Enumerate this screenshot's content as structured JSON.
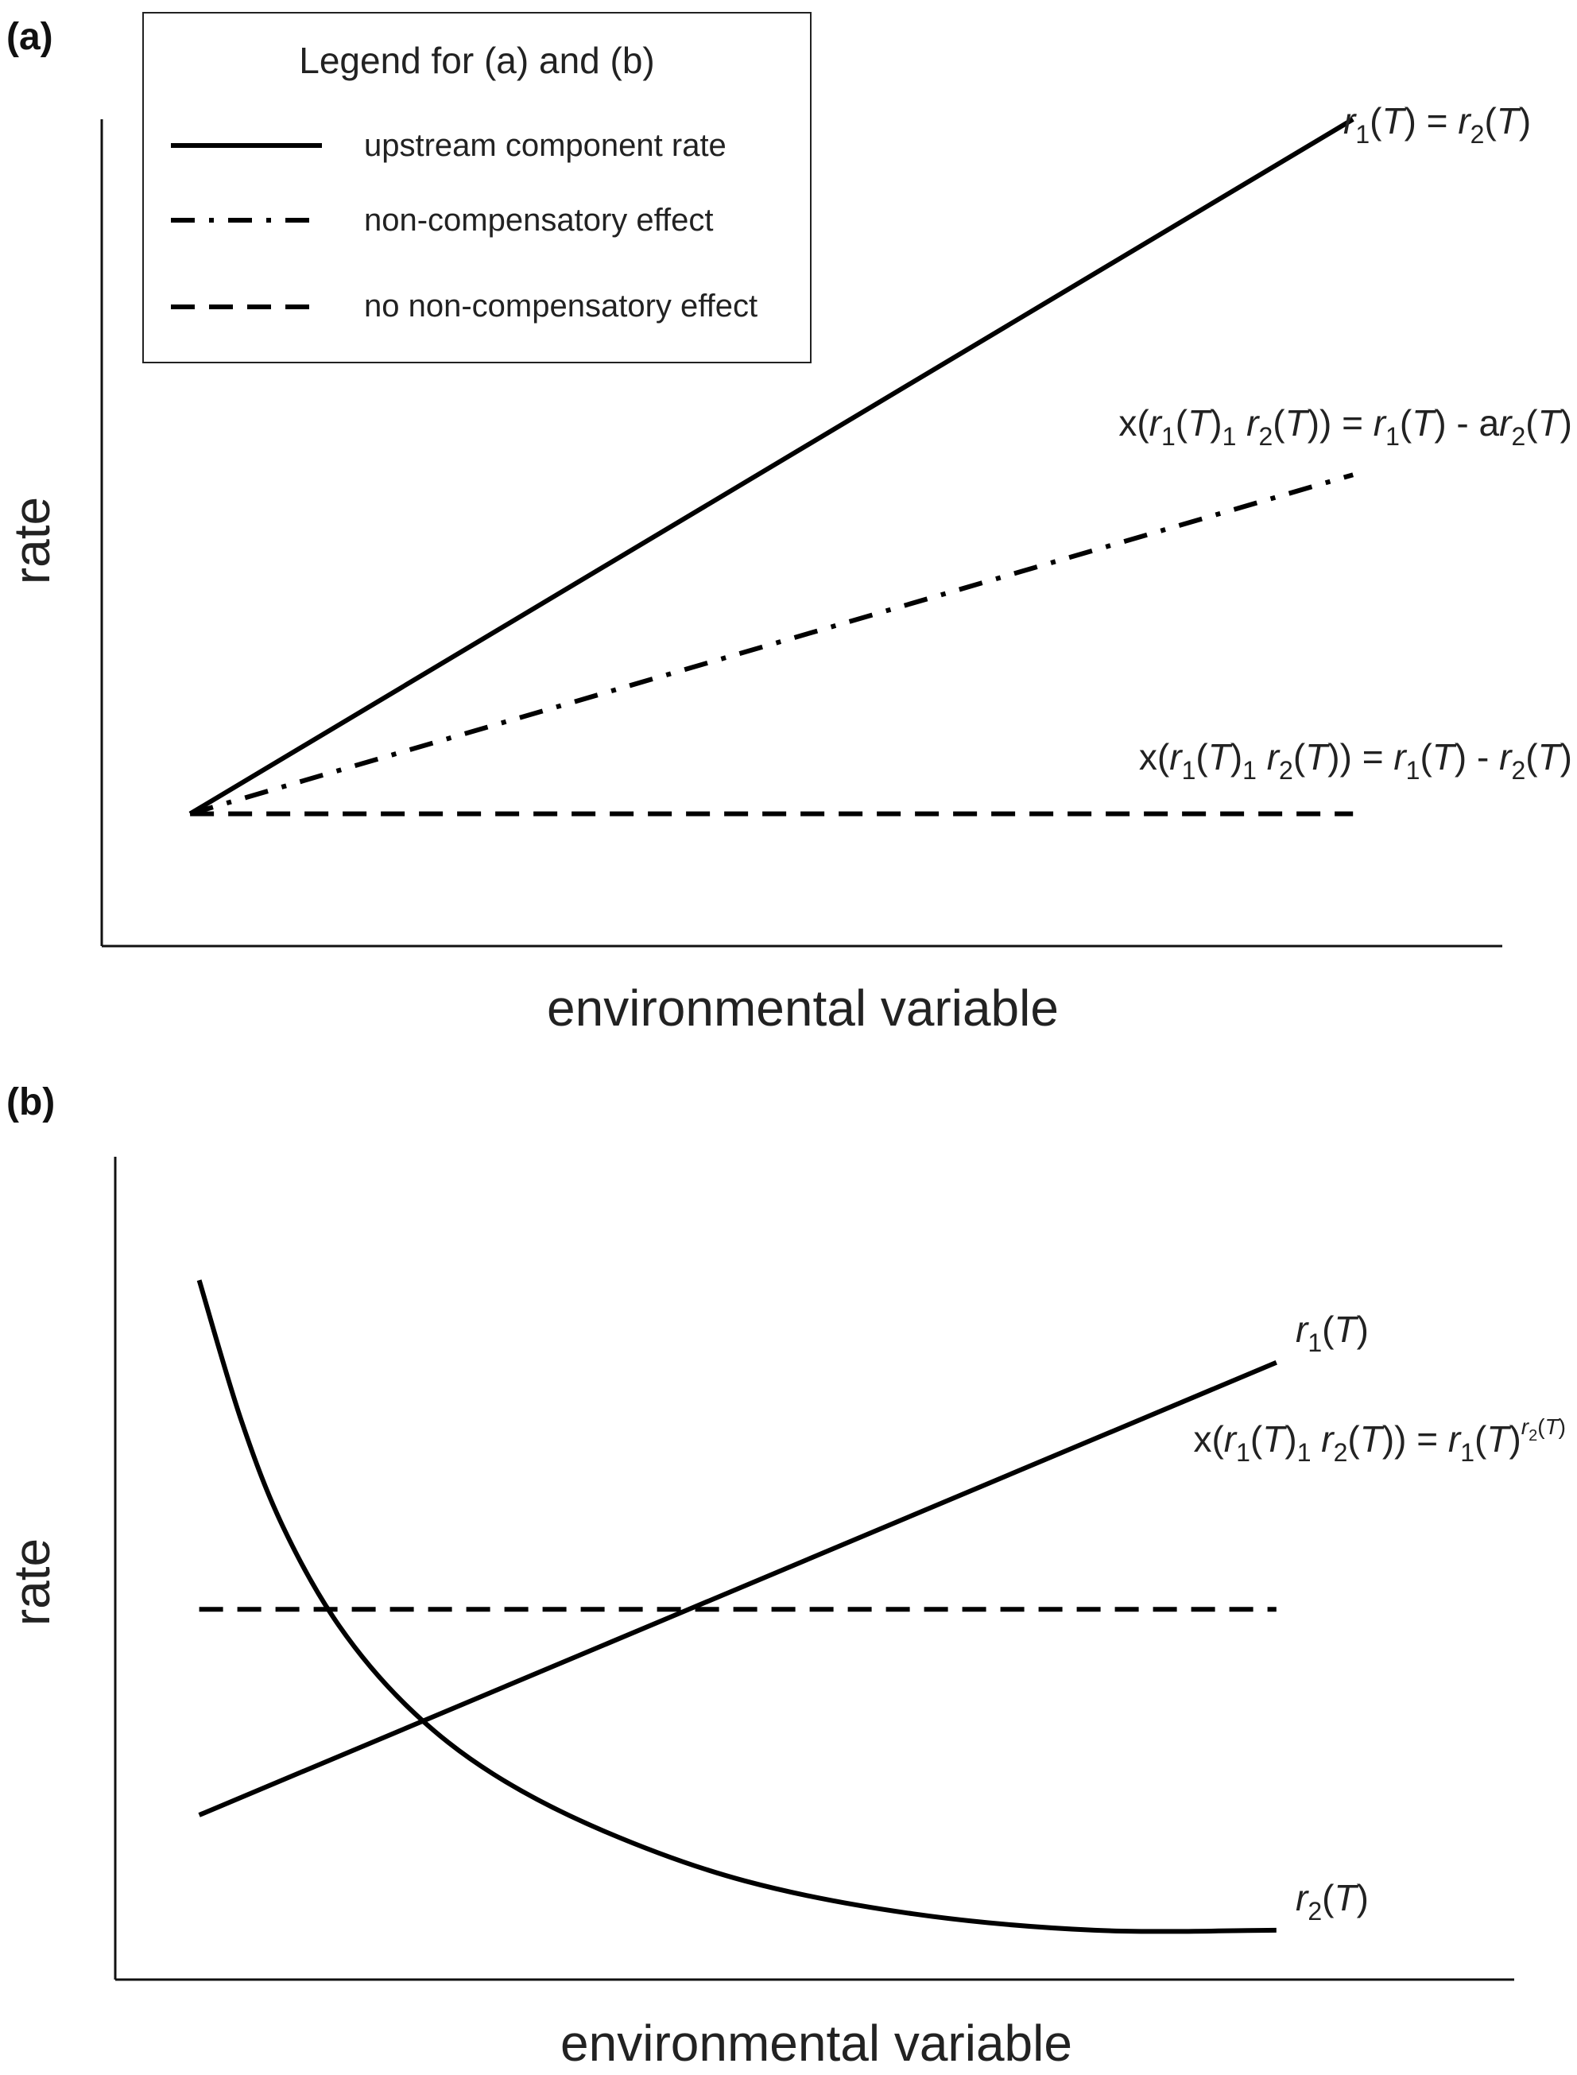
{
  "chart_data": [
    {
      "type": "line",
      "panel_label": "(a)",
      "xlabel": "environmental variable",
      "ylabel": "rate",
      "xlim": [
        0,
        1
      ],
      "ylim": [
        0,
        1
      ],
      "grid": false,
      "legend": {
        "placement": "top-left",
        "title": "Legend for (a) and (b)",
        "entries": [
          {
            "label": "upstream component rate",
            "style": "solid"
          },
          {
            "label": "non-compensatory effect",
            "style": "dashdot"
          },
          {
            "label": "no non-compensatory effect",
            "style": "dashed"
          }
        ]
      },
      "series": [
        {
          "style": "solid",
          "x": [
            0.06,
            0.85
          ],
          "y": [
            0.16,
            1.0
          ],
          "annotation": {
            "parts": [
              [
                "r",
                "it"
              ],
              [
                "1",
                "sub"
              ],
              [
                "(",
                ""
              ],
              [
                "T",
                "it"
              ],
              [
                ") = ",
                ""
              ],
              [
                "r",
                "it"
              ],
              [
                "2",
                "sub"
              ],
              [
                "(",
                ""
              ],
              [
                "T",
                "it"
              ],
              [
                ")",
                ""
              ]
            ]
          }
        },
        {
          "style": "dashdot",
          "x": [
            0.06,
            0.85
          ],
          "y": [
            0.16,
            0.57
          ],
          "annotation": {
            "parts": [
              [
                "x(",
                ""
              ],
              [
                "r",
                "it"
              ],
              [
                "1",
                "sub"
              ],
              [
                "(",
                ""
              ],
              [
                "T",
                "it"
              ],
              [
                ")",
                ""
              ],
              [
                "1",
                "sub"
              ],
              [
                " ",
                ""
              ],
              [
                "r",
                "it"
              ],
              [
                "2",
                "sub"
              ],
              [
                "(",
                ""
              ],
              [
                "T",
                "it"
              ],
              [
                ")) = ",
                ""
              ],
              [
                "r",
                "it"
              ],
              [
                "1",
                "sub"
              ],
              [
                "(",
                ""
              ],
              [
                "T",
                "it"
              ],
              [
                ") - a",
                ""
              ],
              [
                "r",
                "it"
              ],
              [
                "2",
                "sub"
              ],
              [
                "(",
                ""
              ],
              [
                "T",
                "it"
              ],
              [
                ")",
                ""
              ]
            ]
          }
        },
        {
          "style": "dashed",
          "x": [
            0.06,
            0.85
          ],
          "y": [
            0.16,
            0.16
          ],
          "annotation": {
            "parts": [
              [
                "x(",
                ""
              ],
              [
                "r",
                "it"
              ],
              [
                "1",
                "sub"
              ],
              [
                "(",
                ""
              ],
              [
                "T",
                "it"
              ],
              [
                ")",
                ""
              ],
              [
                "1",
                "sub"
              ],
              [
                " ",
                ""
              ],
              [
                "r",
                "it"
              ],
              [
                "2",
                "sub"
              ],
              [
                "(",
                ""
              ],
              [
                "T",
                "it"
              ],
              [
                ")) = ",
                ""
              ],
              [
                "r",
                "it"
              ],
              [
                "1",
                "sub"
              ],
              [
                "(",
                ""
              ],
              [
                "T",
                "it"
              ],
              [
                ") - ",
                ""
              ],
              [
                "r",
                "it"
              ],
              [
                "2",
                "sub"
              ],
              [
                "(",
                ""
              ],
              [
                "T",
                "it"
              ],
              [
                ")",
                ""
              ]
            ]
          }
        }
      ]
    },
    {
      "type": "line",
      "panel_label": "(b)",
      "xlabel": "environmental variable",
      "ylabel": "rate",
      "xlim": [
        0,
        1
      ],
      "ylim": [
        0,
        1
      ],
      "grid": false,
      "series": [
        {
          "style": "solid",
          "x": [
            0.06,
            0.83
          ],
          "y": [
            0.2,
            0.75
          ],
          "annotation": {
            "parts": [
              [
                "r",
                "it"
              ],
              [
                "1",
                "sub"
              ],
              [
                "(",
                ""
              ],
              [
                "T",
                "it"
              ],
              [
                ")",
                ""
              ]
            ]
          }
        },
        {
          "style": "solid",
          "x": [
            0.06,
            0.09,
            0.12,
            0.16,
            0.21,
            0.27,
            0.35,
            0.45,
            0.57,
            0.7,
            0.83
          ],
          "y": [
            0.85,
            0.68,
            0.55,
            0.43,
            0.33,
            0.25,
            0.18,
            0.12,
            0.08,
            0.06,
            0.06
          ],
          "annotation": {
            "parts": [
              [
                "r",
                "it"
              ],
              [
                "2",
                "sub"
              ],
              [
                "(",
                ""
              ],
              [
                "T",
                "it"
              ],
              [
                ")",
                ""
              ]
            ]
          }
        },
        {
          "style": "dashed",
          "x": [
            0.06,
            0.83
          ],
          "y": [
            0.45,
            0.45
          ],
          "annotation": {
            "parts": [
              [
                "x(",
                ""
              ],
              [
                "r",
                "it"
              ],
              [
                "1",
                "sub"
              ],
              [
                "(",
                ""
              ],
              [
                "T",
                "it"
              ],
              [
                ")",
                ""
              ],
              [
                "1",
                "sub"
              ],
              [
                " ",
                ""
              ],
              [
                "r",
                "it"
              ],
              [
                "2",
                "sub"
              ],
              [
                "(",
                ""
              ],
              [
                "T",
                "it"
              ],
              [
                ")) = ",
                ""
              ],
              [
                "r",
                "it"
              ],
              [
                "1",
                "sub"
              ],
              [
                "(",
                ""
              ],
              [
                "T",
                "it"
              ],
              [
                ")",
                ""
              ],
              [
                "r",
                "sup-it"
              ],
              [
                "2",
                "supsub"
              ],
              [
                "(",
                "sup"
              ],
              [
                "T",
                "sup-it"
              ],
              [
                ")",
                "sup"
              ]
            ]
          }
        }
      ]
    }
  ]
}
